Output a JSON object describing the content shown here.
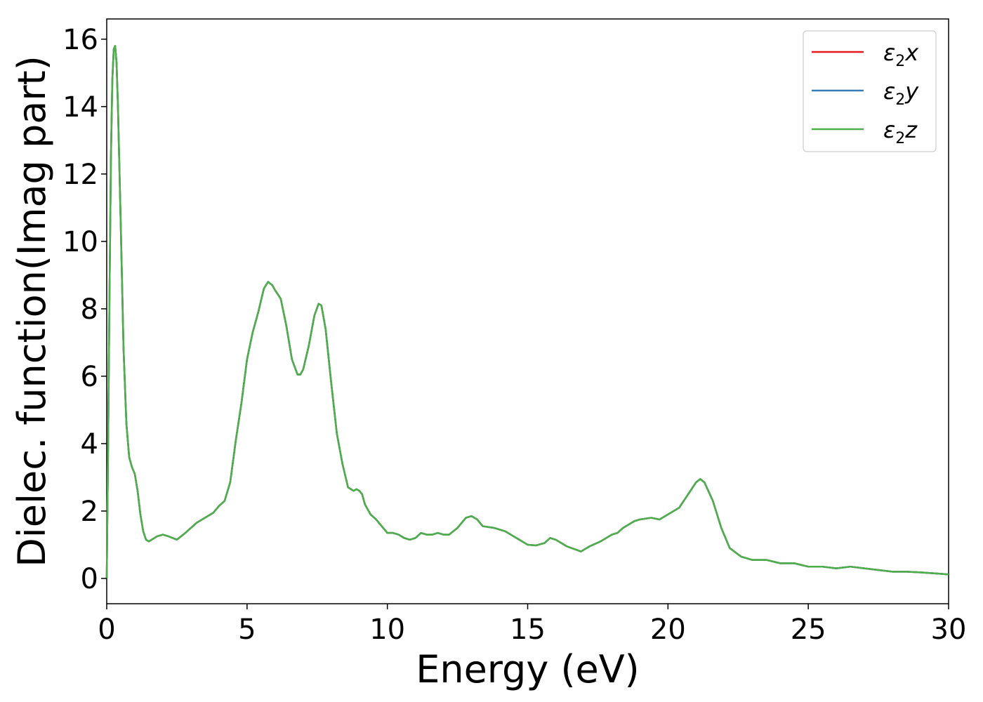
{
  "chart_data": {
    "type": "line",
    "title": "",
    "xlabel": "Energy (eV)",
    "ylabel": "Dielec. function(Imag part)",
    "xlim": [
      0,
      30
    ],
    "ylim": [
      -0.75,
      16.6
    ],
    "xticks": [
      "0",
      "5",
      "10",
      "15",
      "20",
      "25",
      "30"
    ],
    "yticks": [
      "0",
      "2",
      "4",
      "6",
      "8",
      "10",
      "12",
      "14",
      "16"
    ],
    "grid": false,
    "legend_position": "top-right",
    "x": [
      0.0,
      0.05,
      0.1,
      0.15,
      0.2,
      0.25,
      0.3,
      0.35,
      0.4,
      0.5,
      0.6,
      0.7,
      0.8,
      0.9,
      1.0,
      1.1,
      1.2,
      1.3,
      1.4,
      1.5,
      1.6,
      1.8,
      2.0,
      2.2,
      2.5,
      2.8,
      3.2,
      3.6,
      3.8,
      4.0,
      4.2,
      4.4,
      4.6,
      4.8,
      5.0,
      5.2,
      5.4,
      5.6,
      5.75,
      5.9,
      6.0,
      6.2,
      6.4,
      6.6,
      6.8,
      6.9,
      7.0,
      7.2,
      7.4,
      7.55,
      7.65,
      7.8,
      8.0,
      8.2,
      8.4,
      8.6,
      8.8,
      8.9,
      9.0,
      9.1,
      9.2,
      9.4,
      9.6,
      9.8,
      10.0,
      10.2,
      10.4,
      10.6,
      10.8,
      11.0,
      11.2,
      11.4,
      11.6,
      11.8,
      12.0,
      12.2,
      12.5,
      12.8,
      13.0,
      13.2,
      13.4,
      13.8,
      14.2,
      14.6,
      15.0,
      15.3,
      15.6,
      15.8,
      16.0,
      16.4,
      16.9,
      17.2,
      17.6,
      18.0,
      18.2,
      18.4,
      18.6,
      18.8,
      19.0,
      19.4,
      19.7,
      20.0,
      20.4,
      20.8,
      21.0,
      21.15,
      21.3,
      21.6,
      21.9,
      22.2,
      22.6,
      23.0,
      23.5,
      24.0,
      24.5,
      25.0,
      25.5,
      26.0,
      26.5,
      27.0,
      27.5,
      28.0,
      28.5,
      29.0,
      29.5,
      30.0
    ],
    "series": [
      {
        "name": "ε2x",
        "color": "#e41a1c",
        "values": [
          0.0,
          4.0,
          8.5,
          12.5,
          14.8,
          15.7,
          15.8,
          15.3,
          14.0,
          10.5,
          6.8,
          4.6,
          3.6,
          3.3,
          3.1,
          2.6,
          1.9,
          1.4,
          1.15,
          1.1,
          1.15,
          1.25,
          1.3,
          1.25,
          1.15,
          1.35,
          1.65,
          1.85,
          1.95,
          2.15,
          2.3,
          2.85,
          4.1,
          5.2,
          6.5,
          7.3,
          7.9,
          8.6,
          8.8,
          8.7,
          8.55,
          8.3,
          7.5,
          6.5,
          6.05,
          6.05,
          6.2,
          6.9,
          7.8,
          8.15,
          8.1,
          7.4,
          5.8,
          4.3,
          3.4,
          2.7,
          2.6,
          2.65,
          2.6,
          2.5,
          2.2,
          1.9,
          1.75,
          1.55,
          1.35,
          1.35,
          1.3,
          1.2,
          1.15,
          1.2,
          1.35,
          1.3,
          1.3,
          1.35,
          1.3,
          1.3,
          1.5,
          1.8,
          1.85,
          1.75,
          1.55,
          1.5,
          1.4,
          1.2,
          1.0,
          0.98,
          1.05,
          1.2,
          1.15,
          0.95,
          0.8,
          0.95,
          1.1,
          1.3,
          1.35,
          1.5,
          1.6,
          1.7,
          1.75,
          1.8,
          1.75,
          1.9,
          2.1,
          2.6,
          2.85,
          2.95,
          2.85,
          2.3,
          1.5,
          0.9,
          0.65,
          0.55,
          0.55,
          0.45,
          0.45,
          0.35,
          0.35,
          0.3,
          0.35,
          0.3,
          0.25,
          0.2,
          0.2,
          0.18,
          0.15,
          0.12
        ]
      },
      {
        "name": "ε2y",
        "color": "#377eb8",
        "values": [
          0.0,
          4.0,
          8.5,
          12.5,
          14.8,
          15.7,
          15.8,
          15.3,
          14.0,
          10.5,
          6.8,
          4.6,
          3.6,
          3.3,
          3.1,
          2.6,
          1.9,
          1.4,
          1.15,
          1.1,
          1.15,
          1.25,
          1.3,
          1.25,
          1.15,
          1.35,
          1.65,
          1.85,
          1.95,
          2.15,
          2.3,
          2.85,
          4.1,
          5.2,
          6.5,
          7.3,
          7.9,
          8.6,
          8.8,
          8.7,
          8.55,
          8.3,
          7.5,
          6.5,
          6.05,
          6.05,
          6.2,
          6.9,
          7.8,
          8.15,
          8.1,
          7.4,
          5.8,
          4.3,
          3.4,
          2.7,
          2.6,
          2.65,
          2.6,
          2.5,
          2.2,
          1.9,
          1.75,
          1.55,
          1.35,
          1.35,
          1.3,
          1.2,
          1.15,
          1.2,
          1.35,
          1.3,
          1.3,
          1.35,
          1.3,
          1.3,
          1.5,
          1.8,
          1.85,
          1.75,
          1.55,
          1.5,
          1.4,
          1.2,
          1.0,
          0.98,
          1.05,
          1.2,
          1.15,
          0.95,
          0.8,
          0.95,
          1.1,
          1.3,
          1.35,
          1.5,
          1.6,
          1.7,
          1.75,
          1.8,
          1.75,
          1.9,
          2.1,
          2.6,
          2.85,
          2.95,
          2.85,
          2.3,
          1.5,
          0.9,
          0.65,
          0.55,
          0.55,
          0.45,
          0.45,
          0.35,
          0.35,
          0.3,
          0.35,
          0.3,
          0.25,
          0.2,
          0.2,
          0.18,
          0.15,
          0.12
        ]
      },
      {
        "name": "ε2z",
        "color": "#4daf4a",
        "values": [
          0.0,
          4.0,
          8.5,
          12.5,
          14.8,
          15.7,
          15.8,
          15.3,
          14.0,
          10.5,
          6.8,
          4.6,
          3.6,
          3.3,
          3.1,
          2.6,
          1.9,
          1.4,
          1.15,
          1.1,
          1.15,
          1.25,
          1.3,
          1.25,
          1.15,
          1.35,
          1.65,
          1.85,
          1.95,
          2.15,
          2.3,
          2.85,
          4.1,
          5.2,
          6.5,
          7.3,
          7.9,
          8.6,
          8.8,
          8.7,
          8.55,
          8.3,
          7.5,
          6.5,
          6.05,
          6.05,
          6.2,
          6.9,
          7.8,
          8.15,
          8.1,
          7.4,
          5.8,
          4.3,
          3.4,
          2.7,
          2.6,
          2.65,
          2.6,
          2.5,
          2.2,
          1.9,
          1.75,
          1.55,
          1.35,
          1.35,
          1.3,
          1.2,
          1.15,
          1.2,
          1.35,
          1.3,
          1.3,
          1.35,
          1.3,
          1.3,
          1.5,
          1.8,
          1.85,
          1.75,
          1.55,
          1.5,
          1.4,
          1.2,
          1.0,
          0.98,
          1.05,
          1.2,
          1.15,
          0.95,
          0.8,
          0.95,
          1.1,
          1.3,
          1.35,
          1.5,
          1.6,
          1.7,
          1.75,
          1.8,
          1.75,
          1.9,
          2.1,
          2.6,
          2.85,
          2.95,
          2.85,
          2.3,
          1.5,
          0.9,
          0.65,
          0.55,
          0.55,
          0.45,
          0.45,
          0.35,
          0.35,
          0.3,
          0.35,
          0.3,
          0.25,
          0.2,
          0.2,
          0.18,
          0.15,
          0.12
        ]
      }
    ]
  }
}
